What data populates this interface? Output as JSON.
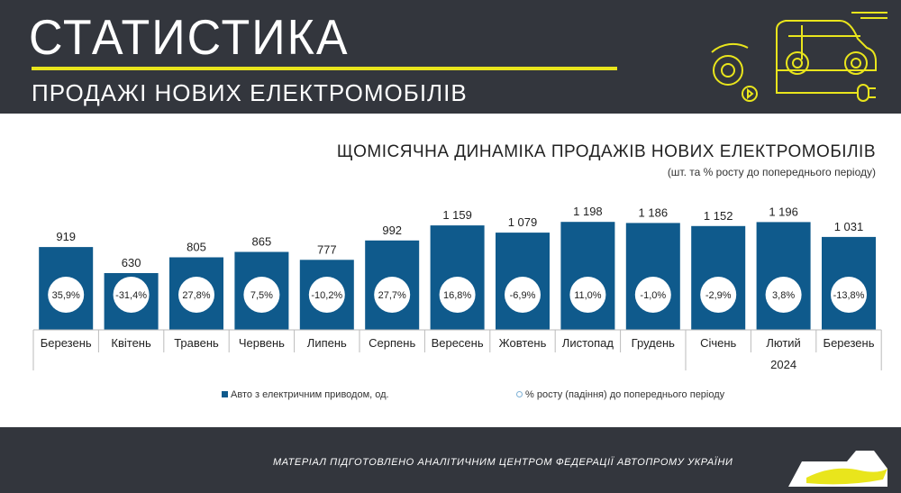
{
  "header": {
    "title": "СТАТИСТИКА",
    "subtitle": "ПРОДАЖІ НОВИХ ЕЛЕКТРОМОБІЛІВ"
  },
  "chart_data": {
    "type": "bar",
    "title": "ЩОМІСЯЧНА ДИНАМІКА ПРОДАЖІВ НОВИХ ЕЛЕКТРОМОБІЛІВ",
    "subtitle": "(шт. та % росту до попереднього періоду)",
    "categories": [
      "Березень",
      "Квітень",
      "Травень",
      "Червень",
      "Липень",
      "Серпень",
      "Вересень",
      "Жовтень",
      "Листопад",
      "Грудень",
      "Січень",
      "Лютий",
      "Березень"
    ],
    "year_group": {
      "label": "2024",
      "start_index": 10
    },
    "series": [
      {
        "name": "Авто з електричним приводом, од.",
        "values": [
          919,
          630,
          805,
          865,
          777,
          992,
          1159,
          1079,
          1198,
          1186,
          1152,
          1196,
          1031
        ],
        "labels": [
          "919",
          "630",
          "805",
          "865",
          "777",
          "992",
          "1 159",
          "1 079",
          "1 198",
          "1 186",
          "1 152",
          "1 196",
          "1 031"
        ],
        "color": "#0f5a8c"
      },
      {
        "name": "% росту (падіння) до попереднього періоду",
        "labels": [
          "35,9%",
          "-31,4%",
          "27,8%",
          "7,5%",
          "-10,2%",
          "27,7%",
          "16,8%",
          "-6,9%",
          "11,0%",
          "-1,0%",
          "-2,9%",
          "3,8%",
          "-13,8%"
        ],
        "color": "#7fb2d6"
      }
    ],
    "ylim": [
      0,
      1300
    ]
  },
  "footer": {
    "text": "МАТЕРІАЛ ПІДГОТОВЛЕНО АНАЛІТИЧНИМ ЦЕНТРОМ ФЕДЕРАЦІЇ АВТОПРОМУ УКРАЇНИ"
  }
}
